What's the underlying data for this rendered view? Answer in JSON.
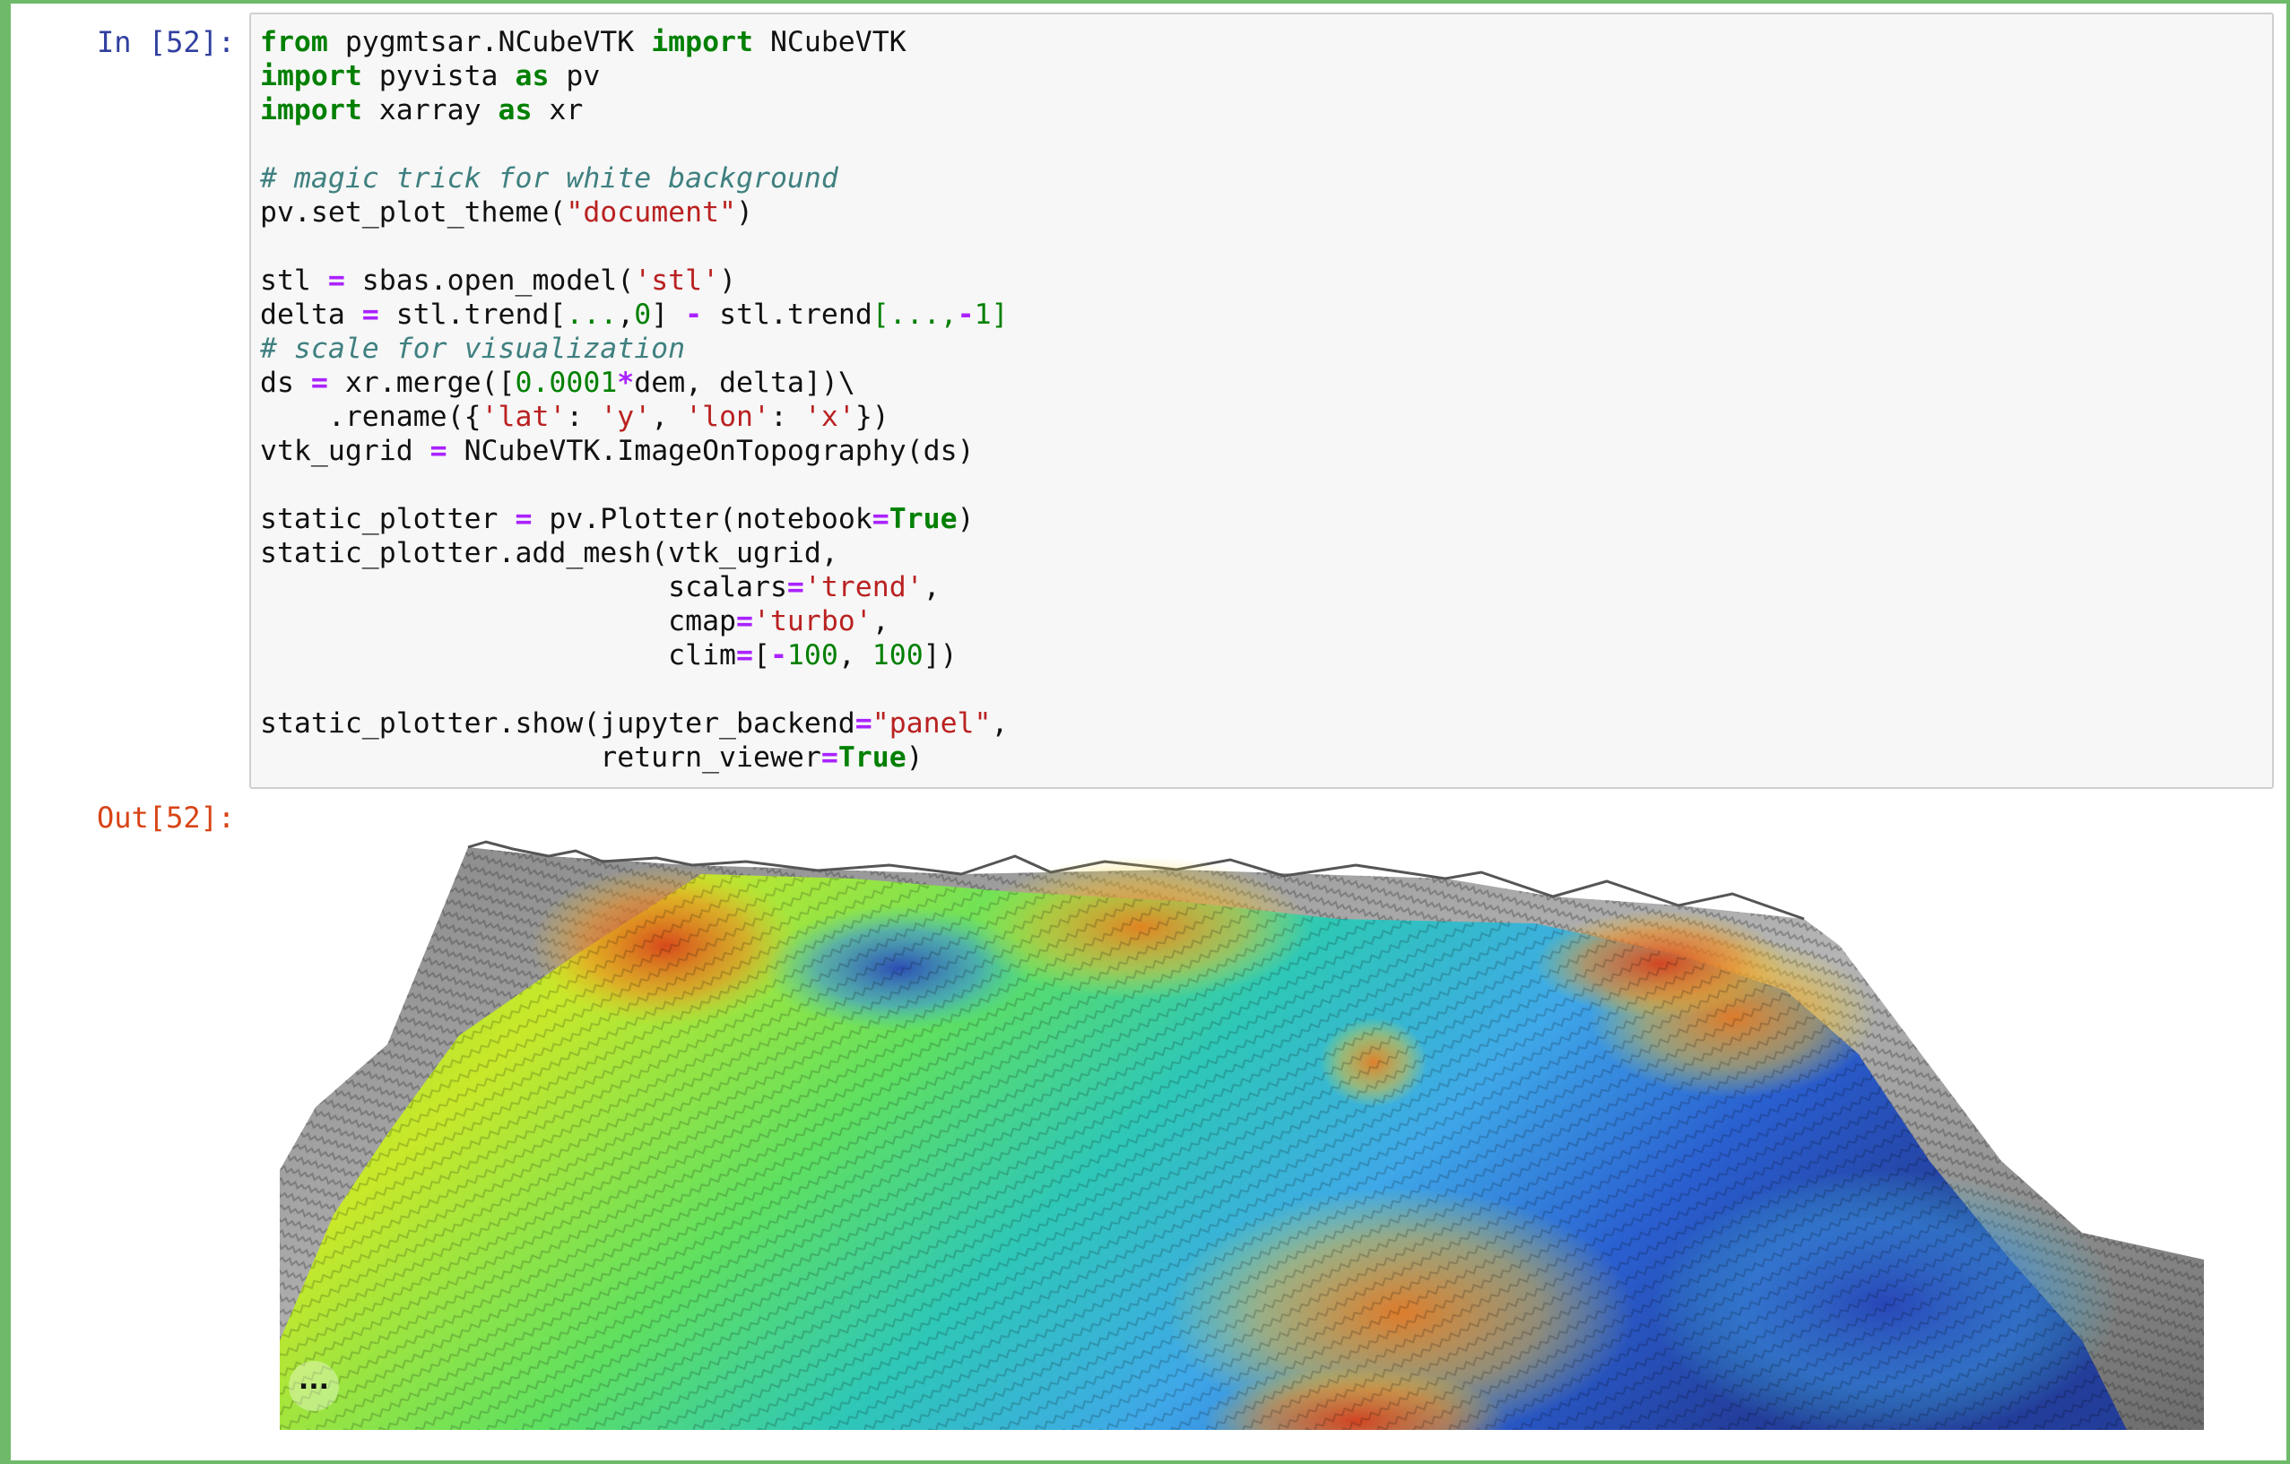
{
  "cell": {
    "in_prompt": "In [52]:",
    "out_prompt": "Out[52]:"
  },
  "code_lines": [
    [
      {
        "t": "kw",
        "v": "from"
      },
      {
        "t": "p",
        "v": " pygmtsar.NCubeVTK "
      },
      {
        "t": "kw",
        "v": "import"
      },
      {
        "t": "p",
        "v": " NCubeVTK"
      }
    ],
    [
      {
        "t": "kw",
        "v": "import"
      },
      {
        "t": "p",
        "v": " pyvista "
      },
      {
        "t": "kw",
        "v": "as"
      },
      {
        "t": "p",
        "v": " pv"
      }
    ],
    [
      {
        "t": "kw",
        "v": "import"
      },
      {
        "t": "p",
        "v": " xarray "
      },
      {
        "t": "kw",
        "v": "as"
      },
      {
        "t": "p",
        "v": " xr"
      }
    ],
    [],
    [
      {
        "t": "cm",
        "v": "# magic trick for white background"
      }
    ],
    [
      {
        "t": "p",
        "v": "pv.set_plot_theme("
      },
      {
        "t": "str",
        "v": "\"document\""
      },
      {
        "t": "p",
        "v": ")"
      }
    ],
    [],
    [
      {
        "t": "p",
        "v": "stl "
      },
      {
        "t": "op",
        "v": "="
      },
      {
        "t": "p",
        "v": " sbas.open_model("
      },
      {
        "t": "str",
        "v": "'stl'"
      },
      {
        "t": "p",
        "v": ")"
      }
    ],
    [
      {
        "t": "p",
        "v": "delta "
      },
      {
        "t": "op",
        "v": "="
      },
      {
        "t": "p",
        "v": " stl.trend["
      },
      {
        "t": "num",
        "v": "..."
      },
      {
        "t": "p",
        "v": ","
      },
      {
        "t": "num",
        "v": "0"
      },
      {
        "t": "p",
        "v": "] "
      },
      {
        "t": "op",
        "v": "-"
      },
      {
        "t": "p",
        "v": " stl.trend"
      },
      {
        "t": "num",
        "v": "[...,"
      },
      {
        "t": "op",
        "v": "-"
      },
      {
        "t": "num",
        "v": "1]"
      }
    ],
    [
      {
        "t": "cm",
        "v": "# scale for visualization"
      }
    ],
    [
      {
        "t": "p",
        "v": "ds "
      },
      {
        "t": "op",
        "v": "="
      },
      {
        "t": "p",
        "v": " xr.merge(["
      },
      {
        "t": "num",
        "v": "0.0001"
      },
      {
        "t": "op",
        "v": "*"
      },
      {
        "t": "p",
        "v": "dem, delta])\\"
      }
    ],
    [
      {
        "t": "p",
        "v": "    .rename({"
      },
      {
        "t": "str",
        "v": "'lat'"
      },
      {
        "t": "p",
        "v": ": "
      },
      {
        "t": "str",
        "v": "'y'"
      },
      {
        "t": "p",
        "v": ", "
      },
      {
        "t": "str",
        "v": "'lon'"
      },
      {
        "t": "p",
        "v": ": "
      },
      {
        "t": "str",
        "v": "'x'"
      },
      {
        "t": "p",
        "v": "})"
      }
    ],
    [
      {
        "t": "p",
        "v": "vtk_ugrid "
      },
      {
        "t": "op",
        "v": "="
      },
      {
        "t": "p",
        "v": " NCubeVTK.ImageOnTopography(ds)"
      }
    ],
    [],
    [
      {
        "t": "p",
        "v": "static_plotter "
      },
      {
        "t": "op",
        "v": "="
      },
      {
        "t": "p",
        "v": " pv.Plotter(notebook"
      },
      {
        "t": "op",
        "v": "="
      },
      {
        "t": "kw",
        "v": "True"
      },
      {
        "t": "p",
        "v": ")"
      }
    ],
    [
      {
        "t": "p",
        "v": "static_plotter.add_mesh(vtk_ugrid,"
      }
    ],
    [
      {
        "t": "p",
        "v": "                        scalars"
      },
      {
        "t": "op",
        "v": "="
      },
      {
        "t": "str",
        "v": "'trend'"
      },
      {
        "t": "p",
        "v": ","
      }
    ],
    [
      {
        "t": "p",
        "v": "                        cmap"
      },
      {
        "t": "op",
        "v": "="
      },
      {
        "t": "str",
        "v": "'turbo'"
      },
      {
        "t": "p",
        "v": ","
      }
    ],
    [
      {
        "t": "p",
        "v": "                        clim"
      },
      {
        "t": "op",
        "v": "="
      },
      {
        "t": "p",
        "v": "["
      },
      {
        "t": "op",
        "v": "-"
      },
      {
        "t": "num",
        "v": "100"
      },
      {
        "t": "p",
        "v": ", "
      },
      {
        "t": "num",
        "v": "100"
      },
      {
        "t": "p",
        "v": "])"
      }
    ],
    [],
    [
      {
        "t": "p",
        "v": "static_plotter.show(jupyter_backend"
      },
      {
        "t": "op",
        "v": "="
      },
      {
        "t": "str",
        "v": "\"panel\""
      },
      {
        "t": "p",
        "v": ","
      }
    ],
    [
      {
        "t": "p",
        "v": "                    return_viewer"
      },
      {
        "t": "op",
        "v": "="
      },
      {
        "t": "kw",
        "v": "True"
      },
      {
        "t": "p",
        "v": ")"
      }
    ]
  ],
  "output": {
    "viewer_icon": "ellipsis-icon",
    "more_label": "..."
  }
}
